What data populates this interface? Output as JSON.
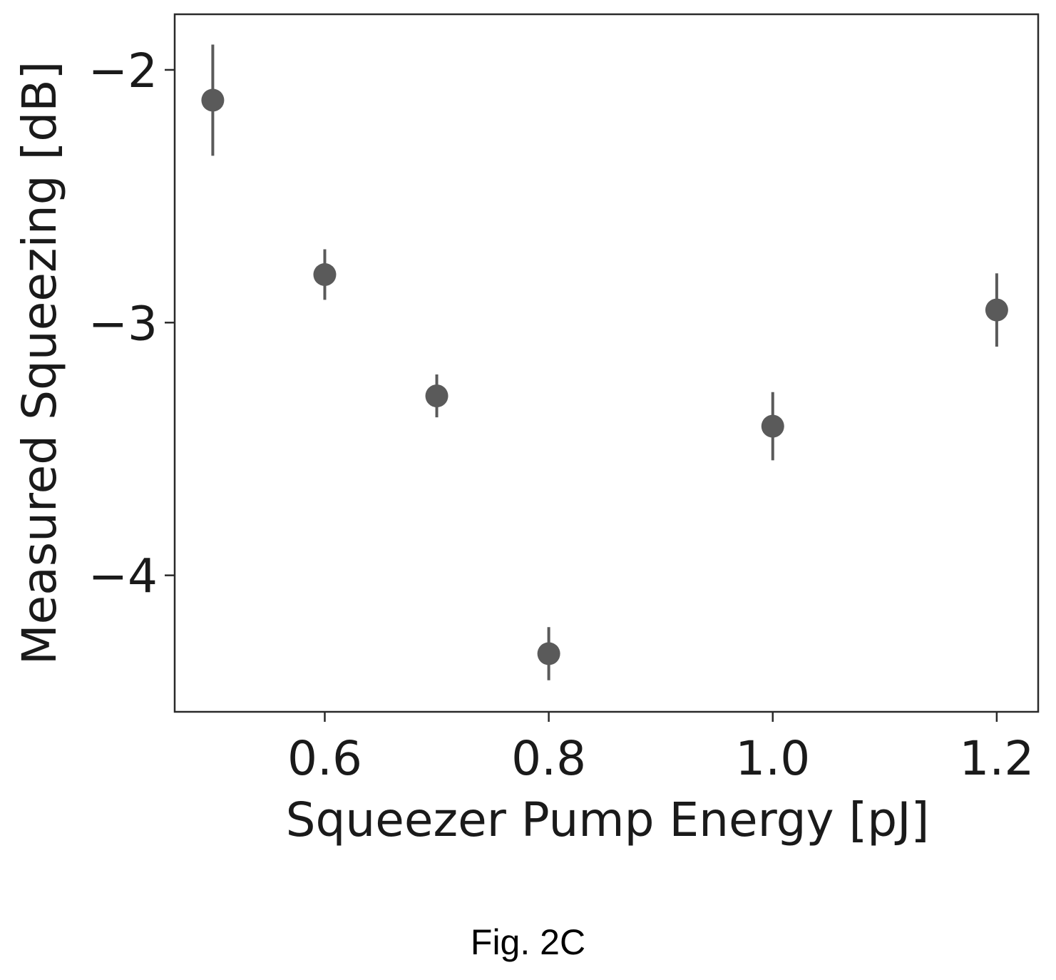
{
  "chart_data": {
    "type": "scatter",
    "xlabel": "Squeezer Pump Energy [pJ]",
    "ylabel": "Measured Squeezing [dB]",
    "xlim": [
      0.466,
      1.237
    ],
    "ylim": [
      -4.54,
      -1.78
    ],
    "xticks": [
      0.6,
      0.8,
      1.0,
      1.2
    ],
    "xtick_labels": [
      "0.6",
      "0.8",
      "1.0",
      "1.2"
    ],
    "yticks": [
      -2,
      -3,
      -4
    ],
    "ytick_labels": [
      "−2",
      "−3",
      "−4"
    ],
    "grid": false,
    "legend": false,
    "marker_color": "#5a5a5a",
    "points": [
      {
        "x": 0.5,
        "y": -2.12,
        "yerr": 0.22
      },
      {
        "x": 0.6,
        "y": -2.81,
        "yerr": 0.1
      },
      {
        "x": 0.7,
        "y": -3.29,
        "yerr": 0.085
      },
      {
        "x": 0.8,
        "y": -4.31,
        "yerr": 0.105
      },
      {
        "x": 1.0,
        "y": -3.41,
        "yerr": 0.135
      },
      {
        "x": 1.2,
        "y": -2.95,
        "yerr": 0.145
      }
    ]
  },
  "caption": "Fig. 2C"
}
